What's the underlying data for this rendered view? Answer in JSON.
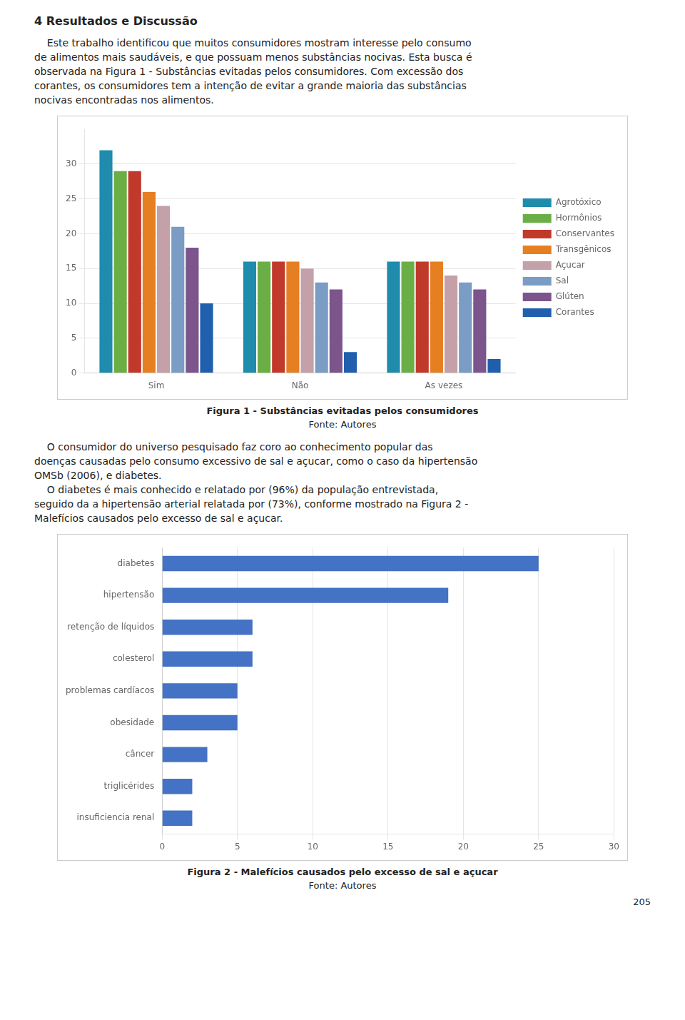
{
  "chart_data": [
    {
      "type": "bar",
      "title": "Figura 1 - Substâncias evitadas pelos consumidores",
      "subtitle": "Fonte: Autores",
      "annotations": [
        "4 Resultados e Discussão",
        "    Este trabalho identificou que muitos consumidores mostram interesse pelo consumo",
        "de alimentos mais saudáveis, e que possuam menos substâncias nocivas. Esta busca é",
        "observada na Figura 1 - Substâncias evitadas pelos consumidores. Com excessão dos",
        "corantes, os consumidores tem a intenção de evitar a grande maioria das substâncias",
        "nocivas encontradas nos alimentos."
      ],
      "categories": [
        "Sim",
        "Não",
        "As vezes"
      ],
      "series": [
        {
          "name": "Agrotóxico",
          "color": "#1F8BAD",
          "values": [
            32,
            16,
            16
          ]
        },
        {
          "name": "Hormônios",
          "color": "#6BAE45",
          "values": [
            29,
            16,
            16
          ]
        },
        {
          "name": "Conservantes",
          "color": "#C0392B",
          "values": [
            29,
            16,
            16
          ]
        },
        {
          "name": "Transgênicos",
          "color": "#E67E22",
          "values": [
            26,
            16,
            16
          ]
        },
        {
          "name": "Açucar",
          "color": "#C4A0A8",
          "values": [
            24,
            15,
            14
          ]
        },
        {
          "name": "Sal",
          "color": "#7B9CC4",
          "values": [
            21,
            13,
            13
          ]
        },
        {
          "name": "Glúten",
          "color": "#7B558C",
          "values": [
            18,
            12,
            12
          ]
        },
        {
          "name": "Corantes",
          "color": "#1F5FAD",
          "values": [
            10,
            3,
            2
          ]
        }
      ],
      "ylim": [
        0,
        35
      ],
      "yticks": [
        0,
        5,
        10,
        15,
        20,
        25,
        30
      ],
      "grid": true,
      "legend": "right"
    },
    {
      "type": "bar",
      "title": "Figura 2 - Malefícios causados pelo excesso de sal e açucar",
      "subtitle": "Fonte: Autores",
      "annotations": [
        "    O consumidor do universo pesquisado faz coro ao conhecimento popular das",
        "doenças causadas pelo consumo excessivo de sal e açucar, como o caso da hipertensão",
        "OMSb (2006), e diabetes.",
        "    O diabetes é mais conhecido e relatado por (96%) da população entrevistada,",
        "seguido da a hipertensão arterial relatada por (73%), conforme mostrado na Figura 2 -",
        "Malefícios causados pelo excesso de sal e açucar.",
        "205"
      ],
      "orientation": "horizontal",
      "categories": [
        "insuficiencia renal",
        "triglicérides",
        "câncer",
        "obesidade",
        "problemas cardíacos",
        "colesterol",
        "retenção de líquidos",
        "hipertensão",
        "diabetes"
      ],
      "values": [
        2,
        2,
        3,
        5,
        5,
        6,
        6,
        19,
        25
      ],
      "color": "#4472C4",
      "xlim": [
        0,
        30
      ],
      "xticks": [
        0,
        5,
        10,
        15,
        20,
        25,
        30
      ],
      "grid": true
    }
  ]
}
